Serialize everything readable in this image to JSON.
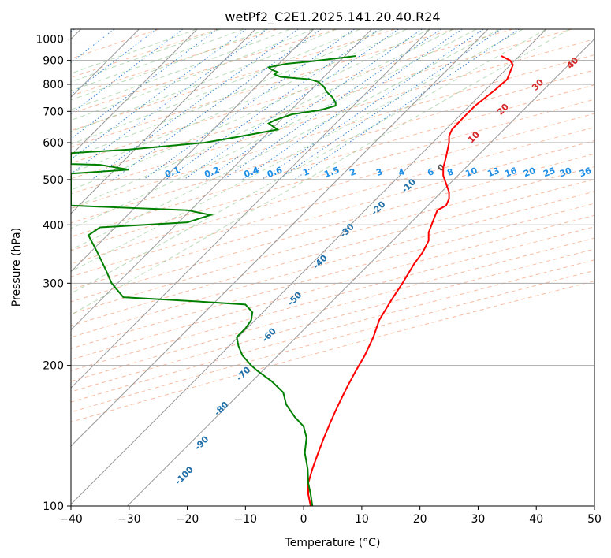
{
  "chart_data": {
    "type": "line",
    "title": "wetPf2_C2E1.2025.141.20.40.R24",
    "xlabel": "Temperature (°C)",
    "ylabel": "Pressure (hPa)",
    "xlim": [
      -40,
      50
    ],
    "ylim": [
      1050,
      100
    ],
    "y_scale": "log",
    "grid": true,
    "x_ticks": [
      "−40",
      "−30",
      "−20",
      "−10",
      "0",
      "10",
      "20",
      "30",
      "40",
      "50"
    ],
    "y_ticks": [
      {
        "value": 1000,
        "label": "1000"
      },
      {
        "value": 900,
        "label": "900"
      },
      {
        "value": 800,
        "label": "800"
      },
      {
        "value": 700,
        "label": "700"
      },
      {
        "value": 600,
        "label": "600"
      },
      {
        "value": 500,
        "label": "500"
      },
      {
        "value": 400,
        "label": "400"
      },
      {
        "value": 300,
        "label": "300"
      },
      {
        "value": 200,
        "label": "200"
      },
      {
        "value": 100,
        "label": "100"
      }
    ],
    "isotherm_labels": [
      {
        "text": "-100",
        "x": -20.2,
        "p": 115,
        "color": "#1f6fa8"
      },
      {
        "text": "-90",
        "x": -17.2,
        "p": 135,
        "color": "#1f6fa8"
      },
      {
        "text": "-80",
        "x": -13.8,
        "p": 160,
        "color": "#1f6fa8"
      },
      {
        "text": "-70",
        "x": -10.0,
        "p": 190,
        "color": "#1f6fa8"
      },
      {
        "text": "-60",
        "x": -5.6,
        "p": 230,
        "color": "#1f6fa8"
      },
      {
        "text": "-50",
        "x": -1.2,
        "p": 275,
        "color": "#1f6fa8"
      },
      {
        "text": "-40",
        "x": 3.2,
        "p": 330,
        "color": "#1f6fa8"
      },
      {
        "text": "-30",
        "x": 7.8,
        "p": 385,
        "color": "#1f6fa8"
      },
      {
        "text": "-20",
        "x": 13.2,
        "p": 430,
        "color": "#1f6fa8"
      },
      {
        "text": "-10",
        "x": 18.4,
        "p": 480,
        "color": "#1f6fa8"
      },
      {
        "text": "0",
        "x": 24.0,
        "p": 525,
        "color": "#555555"
      },
      {
        "text": "10",
        "x": 29.6,
        "p": 610,
        "color": "#d62728"
      },
      {
        "text": "20",
        "x": 34.6,
        "p": 700,
        "color": "#d62728"
      },
      {
        "text": "30",
        "x": 40.6,
        "p": 790,
        "color": "#d62728"
      },
      {
        "text": "40",
        "x": 46.6,
        "p": 880,
        "color": "#d62728"
      }
    ],
    "mixing_ratio_labels": [
      {
        "text": "0.1",
        "x": -22.4
      },
      {
        "text": "0.2",
        "x": -15.6
      },
      {
        "text": "0.4",
        "x": -8.8
      },
      {
        "text": "0.6",
        "x": -4.8
      },
      {
        "text": "1",
        "x": 0.6
      },
      {
        "text": "1.5",
        "x": 5.0
      },
      {
        "text": "2",
        "x": 8.6
      },
      {
        "text": "3",
        "x": 13.2
      },
      {
        "text": "4",
        "x": 17.0
      },
      {
        "text": "6",
        "x": 22.0
      },
      {
        "text": "8",
        "x": 25.4
      },
      {
        "text": "10",
        "x": 29.0
      },
      {
        "text": "13",
        "x": 32.8
      },
      {
        "text": "16",
        "x": 35.8
      },
      {
        "text": "20",
        "x": 39.0
      },
      {
        "text": "25",
        "x": 42.4
      },
      {
        "text": "30",
        "x": 45.2
      },
      {
        "text": "36",
        "x": 48.6
      }
    ],
    "series": [
      {
        "color": "#ff0000",
        "points": [
          [
            34,
            920
          ],
          [
            35.5,
            900
          ],
          [
            36,
            880
          ],
          [
            35.5,
            850
          ],
          [
            35,
            820
          ],
          [
            33,
            780
          ],
          [
            29.5,
            720
          ],
          [
            27.5,
            680
          ],
          [
            25.5,
            640
          ],
          [
            25,
            620
          ],
          [
            25,
            600
          ],
          [
            24.5,
            560
          ],
          [
            24,
            530
          ],
          [
            24,
            510
          ],
          [
            24.5,
            490
          ],
          [
            25,
            470
          ],
          [
            25,
            455
          ],
          [
            24.5,
            440
          ],
          [
            23,
            430
          ],
          [
            22.5,
            415
          ],
          [
            22,
            400
          ],
          [
            21.5,
            385
          ],
          [
            21.5,
            370
          ],
          [
            20.5,
            350
          ],
          [
            19,
            330
          ],
          [
            17,
            300
          ],
          [
            15,
            275
          ],
          [
            13,
            250
          ],
          [
            12,
            230
          ],
          [
            10.5,
            210
          ],
          [
            9,
            195
          ],
          [
            7.5,
            180
          ],
          [
            6.5,
            170
          ],
          [
            5.5,
            160
          ],
          [
            4.5,
            150
          ],
          [
            3.5,
            140
          ],
          [
            2.5,
            130
          ],
          [
            1.5,
            120
          ],
          [
            0.8,
            112
          ],
          [
            0.8,
            106
          ],
          [
            1.2,
            100
          ]
        ]
      },
      {
        "color": "#008000",
        "points": [
          [
            9,
            920
          ],
          [
            6,
            910
          ],
          [
            1,
            895
          ],
          [
            -3,
            885
          ],
          [
            -6,
            870
          ],
          [
            -5.5,
            860
          ],
          [
            -4.5,
            850
          ],
          [
            -5,
            840
          ],
          [
            -4,
            830
          ],
          [
            1,
            820
          ],
          [
            2.5,
            810
          ],
          [
            3.5,
            790
          ],
          [
            4,
            770
          ],
          [
            5,
            750
          ],
          [
            5.5,
            730
          ],
          [
            5.5,
            720
          ],
          [
            3,
            705
          ],
          [
            -2,
            690
          ],
          [
            -5,
            670
          ],
          [
            -6,
            660
          ],
          [
            -4.5,
            640
          ],
          [
            -12,
            615
          ],
          [
            -17,
            600
          ],
          [
            -30,
            580
          ],
          [
            -40,
            570
          ],
          [
            -40,
            540
          ],
          [
            -35,
            538
          ],
          [
            -30,
            525
          ],
          [
            -40,
            515
          ],
          [
            -40,
            440
          ],
          [
            -20,
            430
          ],
          [
            -16,
            420
          ],
          [
            -20,
            405
          ],
          [
            -35,
            395
          ],
          [
            -37,
            380
          ],
          [
            -36,
            360
          ],
          [
            -35,
            340
          ],
          [
            -34,
            320
          ],
          [
            -33,
            300
          ],
          [
            -31,
            280
          ],
          [
            -20,
            275
          ],
          [
            -10,
            270
          ],
          [
            -8.8,
            260
          ],
          [
            -9,
            250
          ],
          [
            -10,
            240
          ],
          [
            -11.5,
            230
          ],
          [
            -11.2,
            220
          ],
          [
            -10.5,
            210
          ],
          [
            -9,
            200
          ],
          [
            -8,
            195
          ],
          [
            -5.5,
            185
          ],
          [
            -3.5,
            175
          ],
          [
            -3,
            165
          ],
          [
            -1.5,
            155
          ],
          [
            0,
            148
          ],
          [
            0.5,
            140
          ],
          [
            0.2,
            130
          ],
          [
            0.7,
            120
          ],
          [
            0.8,
            112
          ],
          [
            1.2,
            106
          ],
          [
            1.5,
            100
          ]
        ]
      }
    ]
  }
}
